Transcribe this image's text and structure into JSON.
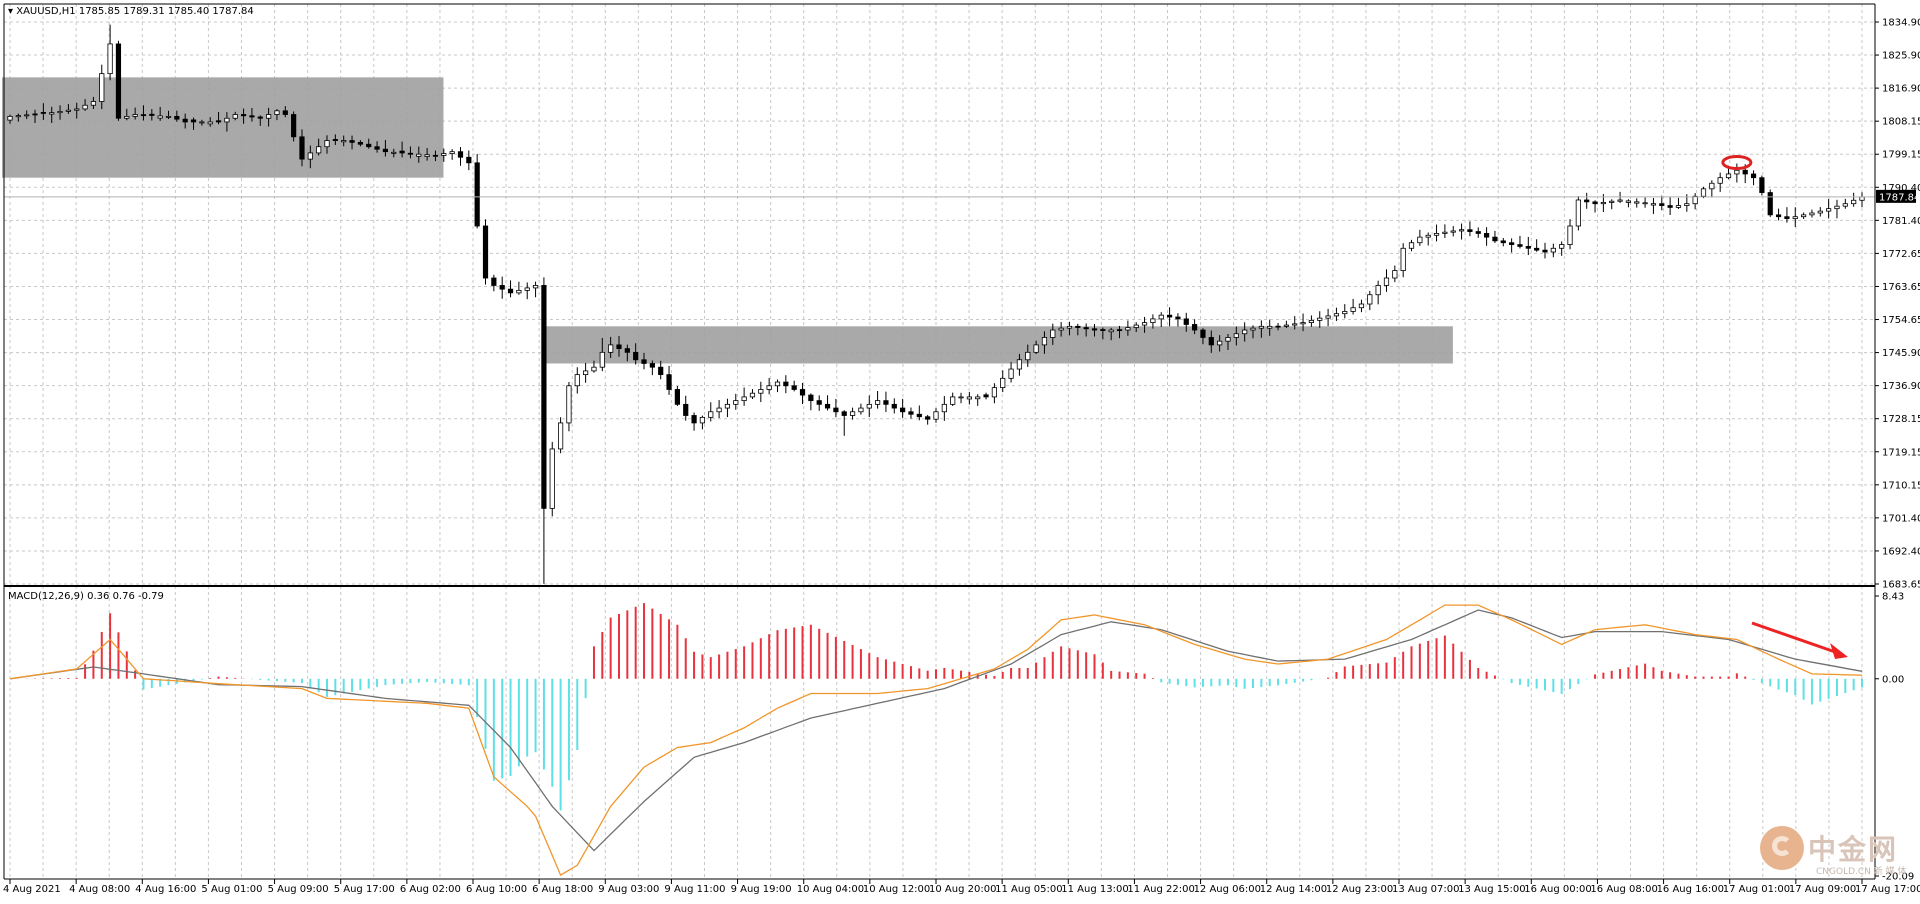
{
  "header": {
    "symbol_info": "XAUUSD,H1  1785.85 1789.31 1785.40 1787.84",
    "macd_info": "MACD(12,26,9) 0.36 0.76 -0.79"
  },
  "watermark": {
    "text": "中金网",
    "sub": "CNGOLD.CN 新 媒 体"
  },
  "colors": {
    "up": "#ffffff",
    "down": "#000000",
    "grid": "#c8c8c8",
    "hist_pos": "#e8323c",
    "hist_neg": "#5ee0e8",
    "macd_line": "#f0962a",
    "signal_line": "#707070",
    "zone": "#a0a0a0",
    "current_line": "#b0b0b0",
    "arrow": "#ee2222",
    "circle": "#dd2222"
  },
  "chart_data": [
    {
      "type": "candlestick",
      "symbol": "XAUUSD",
      "timeframe": "H1",
      "current_price": "1787.84",
      "ylim": [
        1683.65,
        1834.9
      ],
      "y_ticks": [
        "1834.90",
        "1825.90",
        "1816.90",
        "1808.15",
        "1799.15",
        "1790.40",
        "1781.40",
        "1772.65",
        "1763.65",
        "1754.65",
        "1745.90",
        "1736.90",
        "1728.15",
        "1719.15",
        "1710.15",
        "1701.40",
        "1692.40",
        "1683.65"
      ],
      "x_ticks": [
        "4 Aug 2021",
        "4 Aug 08:00",
        "4 Aug 16:00",
        "5 Aug 01:00",
        "5 Aug 09:00",
        "5 Aug 17:00",
        "6 Aug 02:00",
        "6 Aug 10:00",
        "6 Aug 18:00",
        "9 Aug 03:00",
        "9 Aug 11:00",
        "9 Aug 19:00",
        "10 Aug 04:00",
        "10 Aug 12:00",
        "10 Aug 20:00",
        "11 Aug 05:00",
        "11 Aug 13:00",
        "11 Aug 22:00",
        "12 Aug 06:00",
        "12 Aug 14:00",
        "12 Aug 23:00",
        "13 Aug 07:00",
        "13 Aug 15:00",
        "16 Aug 00:00",
        "16 Aug 08:00",
        "16 Aug 16:00",
        "17 Aug 01:00",
        "17 Aug 09:00",
        "17 Aug 17:00"
      ],
      "close_path": [
        [
          0,
          1809.5
        ],
        [
          5,
          1810.5
        ],
        [
          8,
          1811.5
        ],
        [
          10,
          1813.5
        ],
        [
          11,
          1821
        ],
        [
          12,
          1829
        ],
        [
          13,
          1809
        ],
        [
          15,
          1810
        ],
        [
          19,
          1809.5
        ],
        [
          21,
          1808
        ],
        [
          25,
          1808
        ],
        [
          27,
          1810
        ],
        [
          30,
          1809
        ],
        [
          32,
          1811
        ],
        [
          33,
          1810
        ],
        [
          35,
          1798
        ],
        [
          38,
          1803
        ],
        [
          40,
          1803
        ],
        [
          42,
          1802
        ],
        [
          45,
          1800
        ],
        [
          48,
          1799.5
        ],
        [
          51,
          1799
        ],
        [
          53,
          1800
        ],
        [
          55,
          1797
        ],
        [
          56,
          1780
        ],
        [
          57,
          1766
        ],
        [
          58,
          1764
        ],
        [
          60,
          1762
        ],
        [
          63,
          1764
        ],
        [
          64,
          1704
        ],
        [
          65,
          1720
        ],
        [
          66,
          1727
        ],
        [
          67,
          1737
        ],
        [
          68,
          1740
        ],
        [
          70,
          1742
        ],
        [
          71,
          1746
        ],
        [
          72,
          1748
        ],
        [
          74,
          1746
        ],
        [
          75,
          1744
        ],
        [
          77,
          1742
        ],
        [
          78,
          1740
        ],
        [
          80,
          1732
        ],
        [
          81,
          1729
        ],
        [
          82,
          1727
        ],
        [
          84,
          1730
        ],
        [
          87,
          1733
        ],
        [
          90,
          1736
        ],
        [
          92,
          1738
        ],
        [
          94,
          1736
        ],
        [
          96,
          1733
        ],
        [
          98,
          1731
        ],
        [
          100,
          1729
        ],
        [
          102,
          1731
        ],
        [
          104,
          1733
        ],
        [
          107,
          1730
        ],
        [
          110,
          1728
        ],
        [
          113,
          1734
        ],
        [
          117,
          1734
        ],
        [
          119,
          1739
        ],
        [
          121,
          1744
        ],
        [
          123,
          1748
        ],
        [
          125,
          1752
        ],
        [
          127,
          1753
        ],
        [
          130,
          1752
        ],
        [
          133,
          1752
        ],
        [
          136,
          1754
        ],
        [
          138,
          1756
        ],
        [
          140,
          1755
        ],
        [
          142,
          1752
        ],
        [
          144,
          1748
        ],
        [
          146,
          1750
        ],
        [
          148,
          1752
        ],
        [
          150,
          1753
        ],
        [
          152,
          1753
        ],
        [
          155,
          1754
        ],
        [
          160,
          1757
        ],
        [
          162,
          1759
        ],
        [
          164,
          1764
        ],
        [
          166,
          1768
        ],
        [
          167,
          1774
        ],
        [
          169,
          1777
        ],
        [
          171,
          1778
        ],
        [
          174,
          1779
        ],
        [
          176,
          1778
        ],
        [
          178,
          1776
        ],
        [
          180,
          1775
        ],
        [
          182,
          1774
        ],
        [
          184,
          1773
        ],
        [
          186,
          1775
        ],
        [
          187,
          1780
        ],
        [
          188,
          1787
        ],
        [
          190,
          1786
        ],
        [
          193,
          1787
        ],
        [
          197,
          1786
        ],
        [
          199,
          1785
        ],
        [
          201,
          1786
        ],
        [
          203,
          1790
        ],
        [
          205,
          1793
        ],
        [
          207,
          1795
        ],
        [
          209,
          1793
        ],
        [
          210,
          1789
        ],
        [
          211,
          1783
        ],
        [
          213,
          1782
        ],
        [
          215,
          1783
        ],
        [
          217,
          1784
        ],
        [
          220,
          1786
        ],
        [
          222,
          1787.84
        ]
      ],
      "annotations": [
        {
          "type": "zone",
          "x": [
            0,
            51
          ],
          "y": [
            1793,
            1820
          ]
        },
        {
          "type": "zone",
          "x": [
            65,
            172
          ],
          "y": [
            1743,
            1753
          ]
        },
        {
          "type": "ellipse",
          "x": 207,
          "y": 1796
        }
      ]
    },
    {
      "type": "macd",
      "label": "MACD(12,26,9) 0.36 0.76 -0.79",
      "ylim": [
        -20.09,
        8.43
      ],
      "y_ticks": [
        "8.43",
        "0.00",
        "-20.09"
      ],
      "macd_line": [
        [
          0,
          0
        ],
        [
          8,
          1
        ],
        [
          12,
          4
        ],
        [
          16,
          0
        ],
        [
          25,
          -0.5
        ],
        [
          35,
          -1
        ],
        [
          38,
          -2
        ],
        [
          50,
          -2.5
        ],
        [
          55,
          -3
        ],
        [
          58,
          -10
        ],
        [
          62,
          -13
        ],
        [
          63,
          -14
        ],
        [
          66,
          -20
        ],
        [
          68,
          -19
        ],
        [
          72,
          -13
        ],
        [
          76,
          -9
        ],
        [
          80,
          -7
        ],
        [
          84,
          -6.5
        ],
        [
          88,
          -5
        ],
        [
          92,
          -3
        ],
        [
          96,
          -1.5
        ],
        [
          104,
          -1.5
        ],
        [
          110,
          -1
        ],
        [
          114,
          0
        ],
        [
          118,
          1
        ],
        [
          122,
          3
        ],
        [
          126,
          6
        ],
        [
          130,
          6.5
        ],
        [
          136,
          5.5
        ],
        [
          142,
          3.5
        ],
        [
          148,
          2
        ],
        [
          152,
          1.5
        ],
        [
          158,
          2
        ],
        [
          165,
          4
        ],
        [
          172,
          7.5
        ],
        [
          176,
          7.5
        ],
        [
          180,
          6
        ],
        [
          186,
          3.5
        ],
        [
          190,
          5
        ],
        [
          196,
          5.5
        ],
        [
          202,
          4.5
        ],
        [
          207,
          4
        ],
        [
          212,
          2
        ],
        [
          216,
          0.5
        ],
        [
          222,
          0.36
        ]
      ],
      "signal_line": [
        [
          0,
          0
        ],
        [
          10,
          1.2
        ],
        [
          16,
          0.5
        ],
        [
          25,
          -0.6
        ],
        [
          35,
          -0.8
        ],
        [
          45,
          -2
        ],
        [
          55,
          -2.7
        ],
        [
          60,
          -7
        ],
        [
          65,
          -13
        ],
        [
          70,
          -17.5
        ],
        [
          76,
          -12.5
        ],
        [
          82,
          -8
        ],
        [
          88,
          -6.5
        ],
        [
          96,
          -4
        ],
        [
          104,
          -2.5
        ],
        [
          112,
          -1
        ],
        [
          120,
          1.5
        ],
        [
          126,
          4.5
        ],
        [
          132,
          5.8
        ],
        [
          138,
          5
        ],
        [
          146,
          2.8
        ],
        [
          152,
          1.8
        ],
        [
          160,
          2
        ],
        [
          168,
          4
        ],
        [
          176,
          7
        ],
        [
          180,
          6.2
        ],
        [
          186,
          4.2
        ],
        [
          190,
          4.8
        ],
        [
          198,
          4.8
        ],
        [
          206,
          4
        ],
        [
          214,
          2
        ],
        [
          222,
          0.76
        ]
      ]
    }
  ]
}
